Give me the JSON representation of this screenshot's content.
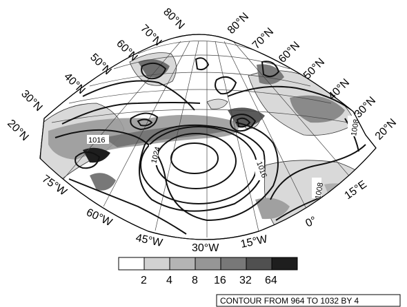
{
  "map": {
    "lat_labels_left": [
      "20°N",
      "30°N",
      "40°N",
      "50°N",
      "60°N",
      "70°N",
      "80°N"
    ],
    "lat_labels_right": [
      "80°N",
      "70°N",
      "60°N",
      "50°N",
      "40°N",
      "30°N",
      "20°N"
    ],
    "lon_labels": [
      "75°W",
      "60°W",
      "45°W",
      "30°W",
      "15°W",
      "0°",
      "15°E"
    ],
    "contour_labels": [
      "1016",
      "1024",
      "1016",
      "1008",
      "1008"
    ],
    "shading_colors": [
      "#ffffff",
      "#d2d2d2",
      "#b4b4b4",
      "#969696",
      "#787878",
      "#505050",
      "#1e1e1e"
    ]
  },
  "colorbar": {
    "tick_labels": [
      "2",
      "4",
      "8",
      "16",
      "32",
      "64"
    ]
  },
  "footnote": "CONTOUR FROM 964 TO 1032 BY 4"
}
